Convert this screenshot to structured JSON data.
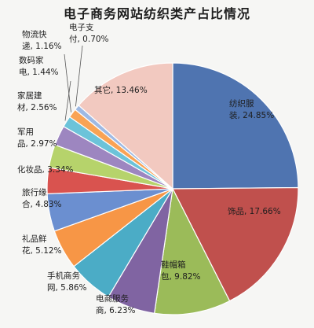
{
  "chart_data": {
    "type": "pie",
    "title": "电子商务网站纺织类产占比情况",
    "categories": [
      "纺织服装",
      "饰品",
      "鞋帽箱包",
      "电商服务商",
      "手机商务网",
      "礼品鲜花",
      "旅行缘合",
      "化妆品",
      "军用品",
      "家居建材",
      "数码家电",
      "物流快递",
      "电子支付",
      "其它"
    ],
    "values": [
      24.85,
      17.66,
      9.82,
      6.23,
      5.86,
      5.12,
      4.83,
      3.34,
      2.97,
      2.56,
      1.44,
      1.16,
      0.7,
      13.46
    ],
    "labels": [
      [
        "纺织服",
        "装, 24.85%"
      ],
      [
        "饰品, 17.66%"
      ],
      [
        "鞋帽箱",
        "包, 9.82%"
      ],
      [
        "电商服务",
        "商, 6.23%"
      ],
      [
        "手机商务",
        "网, 5.86%"
      ],
      [
        "礼品鲜",
        "花, 5.12%"
      ],
      [
        "旅行缘",
        "合, 4.83%"
      ],
      [
        "化妆品, 3.34%"
      ],
      [
        "军用",
        "品, 2.97%"
      ],
      [
        "家居建",
        "材, 2.56%"
      ],
      [
        "数码家",
        "电, 1.44%"
      ],
      [
        "物流快",
        "递, 1.16%"
      ],
      [
        "电子支",
        "付, 0.70%"
      ],
      [
        "其它, 13.46%"
      ]
    ],
    "colors": [
      "#4f74b0",
      "#c0504d",
      "#9bbb59",
      "#8064a2",
      "#4bacc6",
      "#f79646",
      "#6b8fd0",
      "#d9534f",
      "#b6d36b",
      "#9d86c0",
      "#6cc3d9",
      "#f9a354",
      "#9eb9e3",
      "#f2c9c0"
    ]
  }
}
